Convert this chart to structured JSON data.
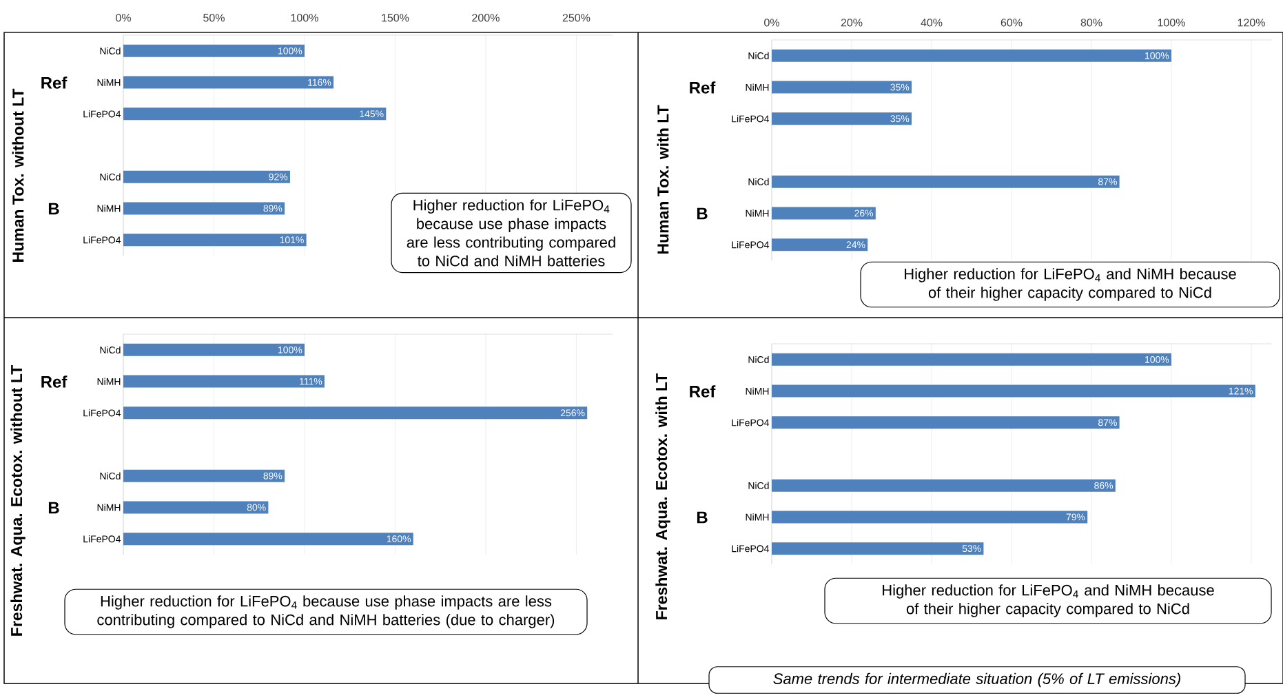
{
  "chart_data": [
    {
      "type": "bar",
      "orientation": "horizontal",
      "ylabel": "Human Tox. without LT",
      "categories": [
        "NiCd",
        "NiMH",
        "LiFePO4",
        null,
        "NiCd",
        "NiMH",
        "LiFePO4"
      ],
      "values": [
        100,
        116,
        145,
        null,
        92,
        89,
        101
      ],
      "value_labels": [
        "100%",
        "116%",
        "145%",
        null,
        "92%",
        "89%",
        "101%"
      ],
      "color": "#4f81bd",
      "xlim": [
        0,
        270
      ],
      "xticks": [
        {
          "value": 0,
          "label": "0%"
        },
        {
          "value": 50,
          "label": "50%"
        },
        {
          "value": 100,
          "label": "100%"
        },
        {
          "value": 150,
          "label": "150%"
        },
        {
          "value": 200,
          "label": "200%"
        },
        {
          "value": 250,
          "label": "250%"
        }
      ],
      "grid": "x",
      "annotations": [
        "Ref",
        "B",
        "Higher reduction for LiFePO$_{4}$ because use phase impacts are less contributing compared to NiCd and NiMH batteries"
      ]
    },
    {
      "type": "bar",
      "orientation": "horizontal",
      "ylabel": "Human Tox. with LT",
      "categories": [
        "NiCd",
        "NiMH",
        "LiFePO4",
        null,
        "NiCd",
        "NiMH",
        "LiFePO4"
      ],
      "values": [
        100,
        35,
        35,
        null,
        87,
        26,
        24
      ],
      "value_labels": [
        "100%",
        "35%",
        "35%",
        null,
        "87%",
        "26%",
        "24%"
      ],
      "color": "#4f81bd",
      "xlim": [
        0,
        125
      ],
      "xticks": [
        {
          "value": 0,
          "label": "0%"
        },
        {
          "value": 20,
          "label": "20%"
        },
        {
          "value": 40,
          "label": "40%"
        },
        {
          "value": 60,
          "label": "60%"
        },
        {
          "value": 80,
          "label": "80%"
        },
        {
          "value": 100,
          "label": "100%"
        },
        {
          "value": 120,
          "label": "120%"
        }
      ],
      "grid": "x",
      "annotations": [
        "Ref",
        "B",
        "Higher reduction for LiFePO$_{4}$ and NiMH because of their higher capacity compared to NiCd"
      ]
    },
    {
      "type": "bar",
      "orientation": "horizontal",
      "ylabel": "Freshwat. Aqua. Ecotox. without LT",
      "categories": [
        "NiCd",
        "NiMH",
        "LiFePO4",
        null,
        "NiCd",
        "NiMH",
        "LiFePO4"
      ],
      "values": [
        100,
        111,
        256,
        null,
        89,
        80,
        160
      ],
      "value_labels": [
        "100%",
        "111%",
        "256%",
        null,
        "89%",
        "80%",
        "160%"
      ],
      "color": "#4f81bd",
      "xlim": [
        0,
        270
      ],
      "xticks": [
        {
          "value": 0,
          "label": null
        },
        {
          "value": 50,
          "label": null
        },
        {
          "value": 100,
          "label": null
        },
        {
          "value": 150,
          "label": null
        },
        {
          "value": 200,
          "label": null
        },
        {
          "value": 250,
          "label": null
        }
      ],
      "grid": "x",
      "tick_labels": "y",
      "annotations": [
        "Ref",
        "B",
        "Higher reduction for LiFePO$_{4}$ because use phase impacts are less contributing compared to NiCd and NiMH batteries (due to charger)"
      ]
    },
    {
      "type": "bar",
      "orientation": "horizontal",
      "ylabel": "Freshwat. Aqua. Ecotox. with LT",
      "categories": [
        "NiCd",
        "NiMH",
        "LiFePO4",
        null,
        "NiCd",
        "NiMH",
        "LiFePO4"
      ],
      "values": [
        100,
        121,
        87,
        null,
        86,
        79,
        53
      ],
      "value_labels": [
        "100%",
        "121%",
        "87%",
        null,
        "86%",
        "79%",
        "53%"
      ],
      "color": "#4f81bd",
      "xlim": [
        0,
        125
      ],
      "xticks": [
        {
          "value": 0,
          "label": null
        },
        {
          "value": 20,
          "label": null
        },
        {
          "value": 40,
          "label": null
        },
        {
          "value": 60,
          "label": null
        },
        {
          "value": 80,
          "label": null
        },
        {
          "value": 100,
          "label": null
        },
        {
          "value": 120,
          "label": null
        }
      ],
      "grid": "x",
      "tick_labels": "y",
      "annotations": [
        "Ref",
        "B",
        "Higher reduction for LiFePO$_{4}$ and NiMH because of their higher capacity compared to NiCd",
        "Same trends for intermediate situation (5% of LT emissions)"
      ]
    }
  ]
}
